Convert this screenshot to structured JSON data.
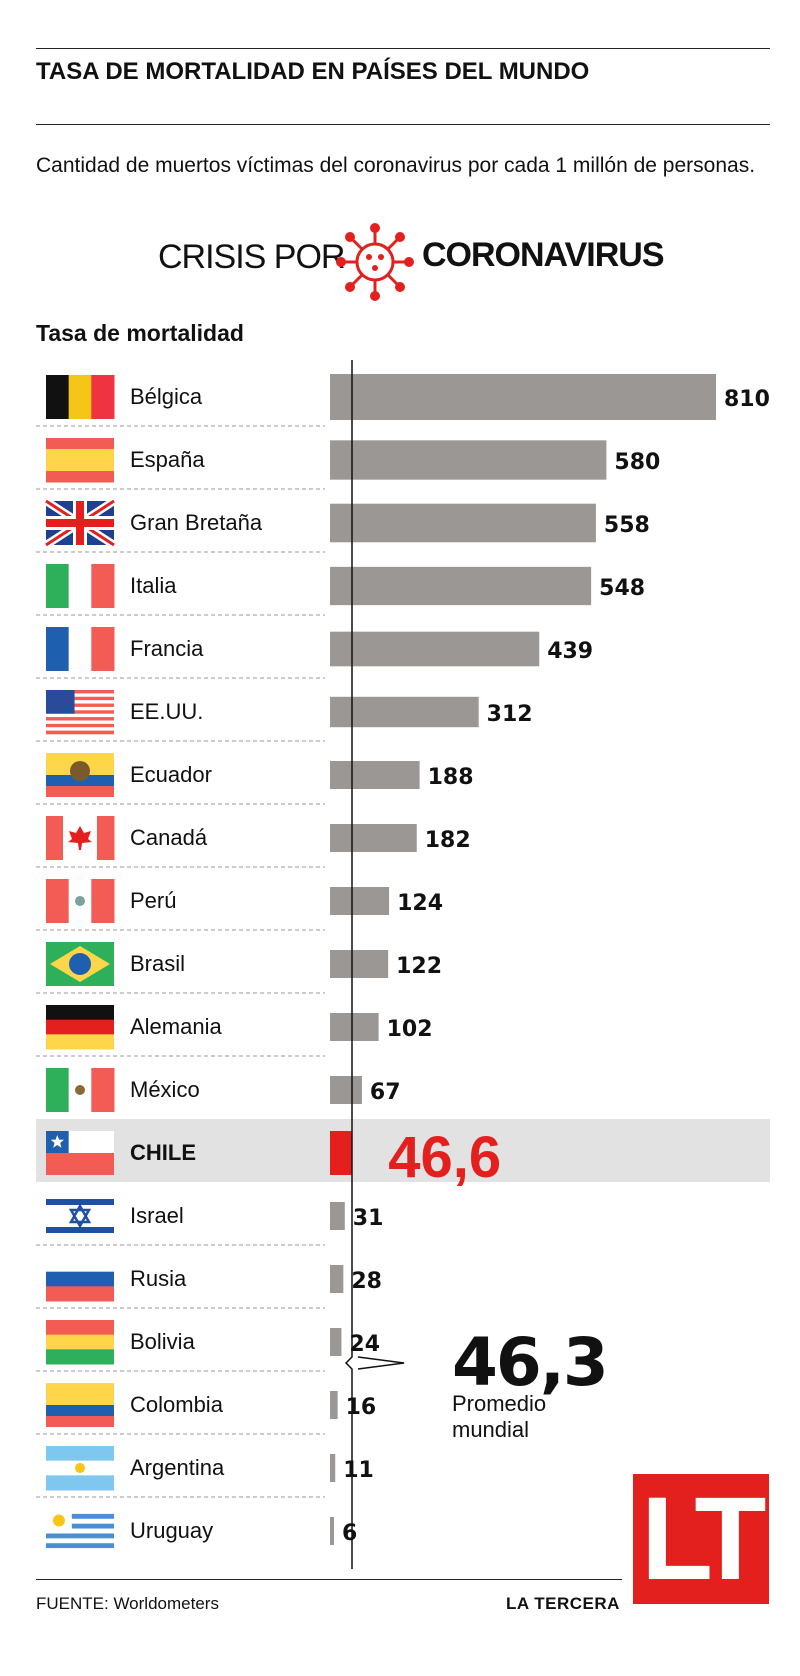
{
  "title": "TASA DE MORTALIDAD EN PAÍSES DEL MUNDO",
  "subtitle": "Cantidad de muertos víctimas del coronavirus por cada 1 millón de personas.",
  "banner": {
    "left": "CRISIS POR",
    "right": "CORONAVIRUS",
    "icon": "virus-icon"
  },
  "colors": {
    "bar": "#9a9794",
    "highlight": "#e4201e",
    "highlight_row": "#e2e2e2"
  },
  "chart_data": {
    "type": "bar",
    "orientation": "horizontal",
    "title": "Tasa de mortalidad",
    "categories": [
      "Bélgica",
      "España",
      "Gran Bretaña",
      "Italia",
      "Francia",
      "EE.UU.",
      "Ecuador",
      "Canadá",
      "Perú",
      "Brasil",
      "Alemania",
      "México",
      "CHILE",
      "Israel",
      "Rusia",
      "Bolivia",
      "Colombia",
      "Argentina",
      "Uruguay"
    ],
    "values": [
      810,
      580,
      558,
      548,
      439,
      312,
      188,
      182,
      124,
      122,
      102,
      67,
      46.6,
      31,
      28,
      24,
      16,
      11,
      6
    ],
    "value_labels": [
      "810",
      "580",
      "558",
      "548",
      "439",
      "312",
      "188",
      "182",
      "124",
      "122",
      "102",
      "67",
      "46,6",
      "31",
      "28",
      "24",
      "16",
      "11",
      "6"
    ],
    "highlight": "CHILE",
    "reference_line": {
      "value": 46.3,
      "label": "46,3",
      "caption_line1": "Promedio",
      "caption_line2": "mundial"
    },
    "xlim": [
      0,
      810
    ]
  },
  "footer": {
    "source": "FUENTE: Worldometers",
    "brand": "LA TERCERA",
    "logo": "LT"
  }
}
